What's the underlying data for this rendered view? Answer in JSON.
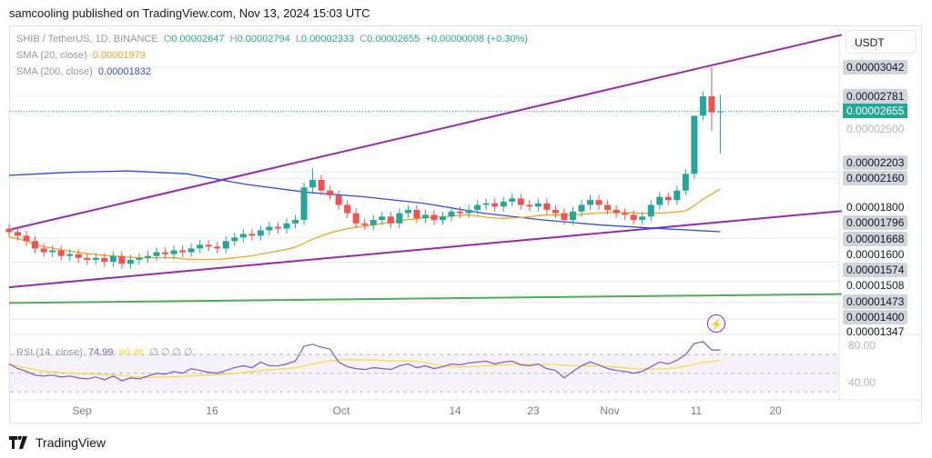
{
  "header": {
    "published": "samcooling published on TradingView.com, Nov 13, 2024 15:03 UTC"
  },
  "legend": {
    "symbol": "SHIB / TetherUS, 1D, BINANCE",
    "o_label": "O",
    "o": "0.00002647",
    "h_label": "H",
    "h": "0.00002794",
    "l_label": "L",
    "l": "0.00002333",
    "c_label": "C",
    "c": "0.00002655",
    "change": "+0.00000008 (+0.30%)",
    "sma20_label": "SMA (20, close)",
    "sma20": "0.00001979",
    "sma200_label": "SMA (200, close)",
    "sma200": "0.00001832",
    "rsi_label": "RSI (14, close)",
    "rsi": "74.99",
    "rsi_ma": "60.46",
    "rsi_extra": "∅ ∅ ∅ ∅"
  },
  "price_axis": {
    "currency": "USDT",
    "labels": [
      {
        "text": "0.00003042",
        "style": "hl"
      },
      {
        "text": "0.00002781",
        "style": "hl"
      },
      {
        "text": "0.00002655",
        "style": "cur"
      },
      {
        "text": "0.00002500",
        "style": "dim"
      },
      {
        "text": "0.00002203",
        "style": "hl"
      },
      {
        "text": "0.00002160",
        "style": "hl"
      },
      {
        "text": "0.00001800",
        "style": ""
      },
      {
        "text": "0.00001796",
        "style": "hl"
      },
      {
        "text": "0.00001668",
        "style": "hl"
      },
      {
        "text": "0.00001600",
        "style": ""
      },
      {
        "text": "0.00001574",
        "style": "hl"
      },
      {
        "text": "0.00001508",
        "style": ""
      },
      {
        "text": "0.00001473",
        "style": "hl"
      },
      {
        "text": "0.00001400",
        "style": "hl"
      },
      {
        "text": "0.00001347",
        "style": ""
      }
    ],
    "rsi_labels": [
      "80.00",
      "40.00"
    ]
  },
  "time_axis": [
    "Sep",
    "16",
    "Oct",
    "14",
    "23",
    "Nov",
    "11",
    "20"
  ],
  "footer": {
    "brand": "TradingView"
  },
  "icons": {
    "alert": "lightning-icon",
    "logo": "tradingview-logo"
  },
  "colors": {
    "up": "#26a69a",
    "down": "#ef5350",
    "sma20": "#f7a21b",
    "sma200": "#2e4fd8",
    "trend_channel": "#9c27b0",
    "support": "#4caf50",
    "rsi": "#7e57c2",
    "rsi_ma": "#fdd835"
  },
  "chart_data": {
    "type": "candlestick",
    "scale": "log",
    "start_date": "2024-08-23",
    "end_date": "2024-11-13",
    "interval": "1D",
    "unit": "1e-8 USDT",
    "close": [
      1830,
      1810,
      1780,
      1740,
      1720,
      1730,
      1700,
      1710,
      1690,
      1680,
      1690,
      1670,
      1700,
      1660,
      1680,
      1690,
      1700,
      1720,
      1710,
      1730,
      1720,
      1740,
      1760,
      1750,
      1740,
      1780,
      1800,
      1820,
      1810,
      1840,
      1860,
      1850,
      1880,
      1900,
      2100,
      2150,
      2080,
      2050,
      1990,
      1940,
      1880,
      1870,
      1900,
      1920,
      1880,
      1940,
      1960,
      1910,
      1930,
      1900,
      1920,
      1950,
      1940,
      1960,
      1990,
      2000,
      1980,
      2010,
      2030,
      1990,
      1980,
      2000,
      1960,
      1940,
      1900,
      1950,
      1990,
      2020,
      1990,
      1960,
      1940,
      1930,
      1900,
      1920,
      1990,
      2040,
      2020,
      2080,
      2190,
      2620,
      2781,
      2647,
      2655
    ],
    "last_candle": {
      "open": 2647,
      "high": 2794,
      "low": 2333,
      "close": 2655
    },
    "sma200": [
      2180,
      2200,
      2210,
      2190,
      2120,
      2070,
      2040,
      2000,
      1940,
      1900,
      1870,
      1850,
      1832
    ],
    "trendlines": [
      {
        "kind": "channel-upper",
        "from": {
          "date": "2024-08-23",
          "price": 1843
        },
        "to": {
          "date": "2024-11-27",
          "price": 3362
        }
      },
      {
        "kind": "channel-lower",
        "from": {
          "date": "2024-08-23",
          "price": 1544
        },
        "to": {
          "date": "2024-11-27",
          "price": 1953
        }
      },
      {
        "kind": "support",
        "from": {
          "date": "2024-08-23",
          "price": 1471
        },
        "to": {
          "date": "2024-11-27",
          "price": 1512
        }
      }
    ],
    "rsi": [
      60,
      55,
      52,
      48,
      47,
      48,
      46,
      47,
      45,
      44,
      46,
      43,
      47,
      42,
      45,
      44,
      47,
      50,
      49,
      52,
      50,
      55,
      53,
      51,
      50,
      53,
      56,
      58,
      56,
      62,
      58,
      58,
      60,
      63,
      79,
      81,
      78,
      76,
      62,
      57,
      55,
      54,
      56,
      55,
      54,
      58,
      60,
      56,
      58,
      55,
      57,
      60,
      59,
      61,
      62,
      63,
      60,
      62,
      63,
      59,
      58,
      60,
      55,
      53,
      45,
      52,
      58,
      62,
      59,
      55,
      53,
      52,
      50,
      52,
      57,
      62,
      60,
      64,
      70,
      82,
      84,
      75,
      75
    ],
    "rsi_bands": [
      70,
      50,
      30
    ]
  }
}
